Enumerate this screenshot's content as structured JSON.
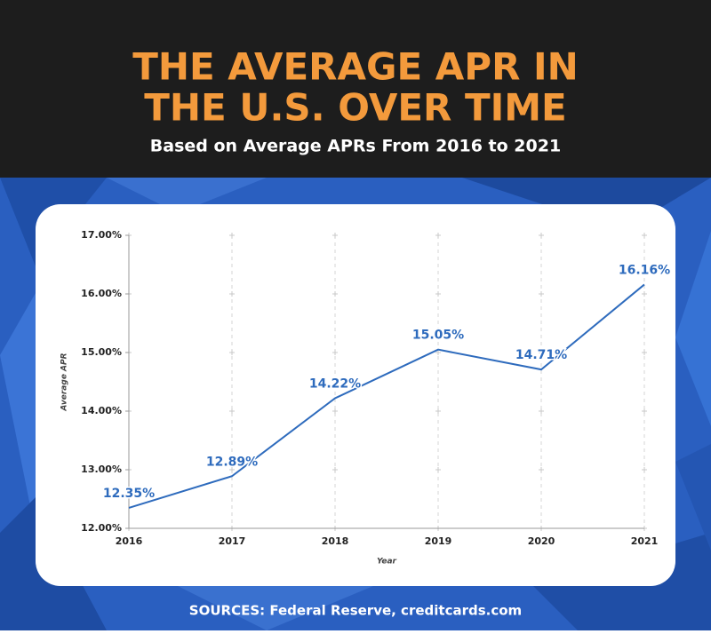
{
  "chart_data": {
    "type": "line",
    "title": [
      "THE AVERAGE APR IN",
      "THE U.S. OVER TIME"
    ],
    "subtitle": "Based on Average APRs From 2016 to 2021",
    "x_label": "Year",
    "y_label": "Average APR",
    "source": "SOURCES: Federal Reserve, creditcards.com",
    "x": [
      2016,
      2017,
      2018,
      2019,
      2020,
      2021
    ],
    "xlim": [
      2016,
      2021
    ],
    "xticks": [
      2016,
      2017,
      2018,
      2019,
      2020,
      2021
    ],
    "ylim": [
      12,
      17
    ],
    "yticks": [
      {
        "value": 12,
        "label": "12.00%"
      },
      {
        "value": 13,
        "label": "13.00%"
      },
      {
        "value": 14,
        "label": "14.00%"
      },
      {
        "value": 15,
        "label": "15.00%"
      },
      {
        "value": 16,
        "label": "16.00%"
      },
      {
        "value": 17,
        "label": "17.00%"
      }
    ],
    "series": [
      {
        "name": "Average APR",
        "color": "#2e6bbd",
        "values": [
          12.35,
          12.89,
          14.22,
          15.05,
          14.71,
          16.16
        ],
        "value_labels": [
          "12.35%",
          "12.89%",
          "14.22%",
          "15.05%",
          "14.71%",
          "16.16%"
        ]
      }
    ],
    "grid": true
  }
}
